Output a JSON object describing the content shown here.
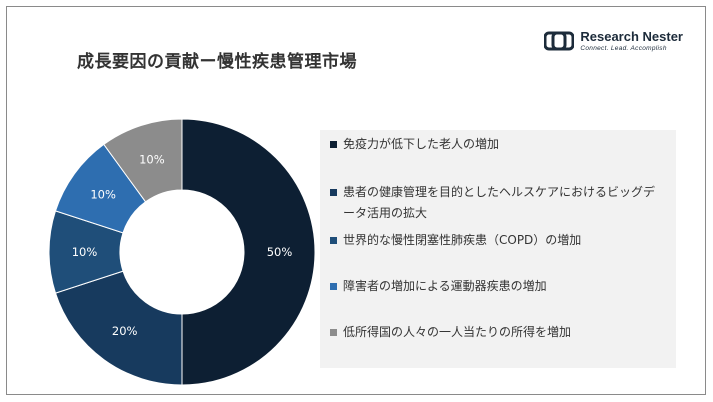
{
  "title": "成長要因の貢献ー慢性疾患管理市場",
  "logo": {
    "name": "Research Nester",
    "tagline": "Connect. Lead. Accomplish"
  },
  "colors": {
    "title": "#333333",
    "slice_1": "#0d1f33",
    "slice_2": "#173a5e",
    "slice_3": "#1f4e79",
    "slice_4": "#2e6eb0",
    "slice_5": "#8c8c8c",
    "legend_bg": "#f2f2f2"
  },
  "chart_data": {
    "type": "pie",
    "style": "donut",
    "slices": [
      {
        "name": "免疫力が低下した老人の増加",
        "value": 50,
        "label": "50%",
        "color": "#0d1f33"
      },
      {
        "name": "患者の健康管理を目的としたヘルスケアにおけるビッグデータ活用の拡大",
        "value": 20,
        "label": "20%",
        "color": "#173a5e"
      },
      {
        "name": "世界的な慢性閉塞性肺疾患（COPD）の増加",
        "value": 10,
        "label": "10%",
        "color": "#1f4e79"
      },
      {
        "name": "障害者の増加による運動器疾患の増加",
        "value": 10,
        "label": "10%",
        "color": "#2e6eb0"
      },
      {
        "name": "低所得国の人々の一人当たりの所得を増加",
        "value": 10,
        "label": "10%",
        "color": "#8c8c8c"
      }
    ],
    "legend_position": "right"
  }
}
